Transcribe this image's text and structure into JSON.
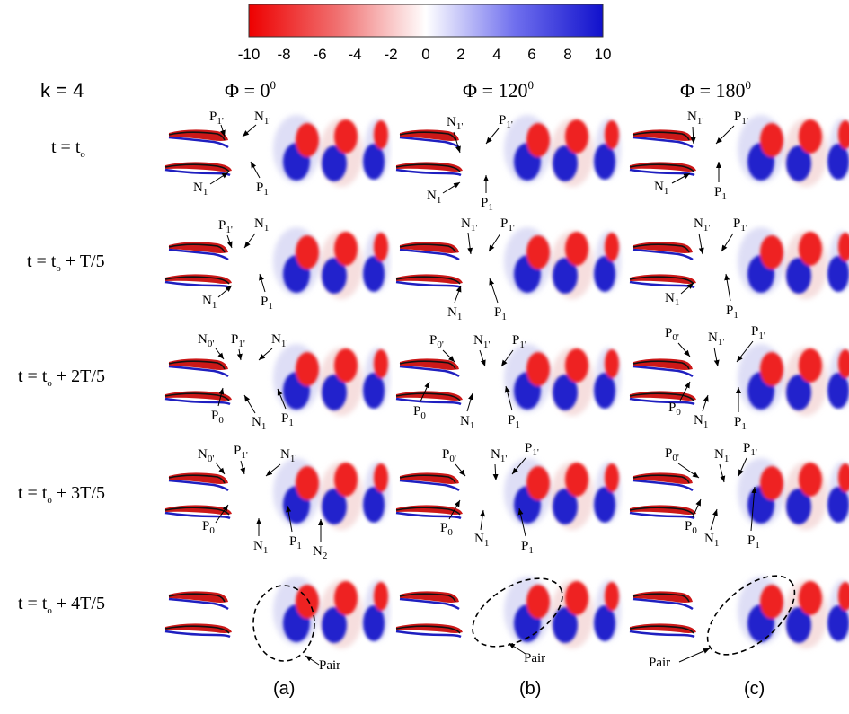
{
  "figure": {
    "colorbar": {
      "ticks": [
        "-10",
        "-8",
        "-6",
        "-4",
        "-2",
        "0",
        "2",
        "4",
        "6",
        "8",
        "10"
      ],
      "min": -10,
      "max": 10,
      "color_negative": "#e01010",
      "color_zero": "#ffffff",
      "color_positive": "#1a1acc"
    },
    "k_label": "k = 4",
    "columns": [
      {
        "phi": "Φ = 0",
        "sup": "0",
        "letter": "(a)"
      },
      {
        "phi": "Φ = 120",
        "sup": "0",
        "letter": "(b)"
      },
      {
        "phi": "Φ = 180",
        "sup": "0",
        "letter": "(c)"
      }
    ],
    "rows": [
      {
        "t": "t = t",
        "sub": "o",
        "rest": ""
      },
      {
        "t": "t = t",
        "sub": "o",
        "rest": " + T/5"
      },
      {
        "t": "t = t",
        "sub": "o",
        "rest": " + 2T/5"
      },
      {
        "t": "t = t",
        "sub": "o",
        "rest": " + 3T/5"
      },
      {
        "t": "t = t",
        "sub": "o",
        "rest": " + 4T/5"
      }
    ],
    "labels": {
      "P": "P",
      "N": "N",
      "s1p": "1'",
      "s1": "1",
      "s0p": "0'",
      "s0": "0",
      "s2": "2",
      "pair": "Pair"
    }
  }
}
